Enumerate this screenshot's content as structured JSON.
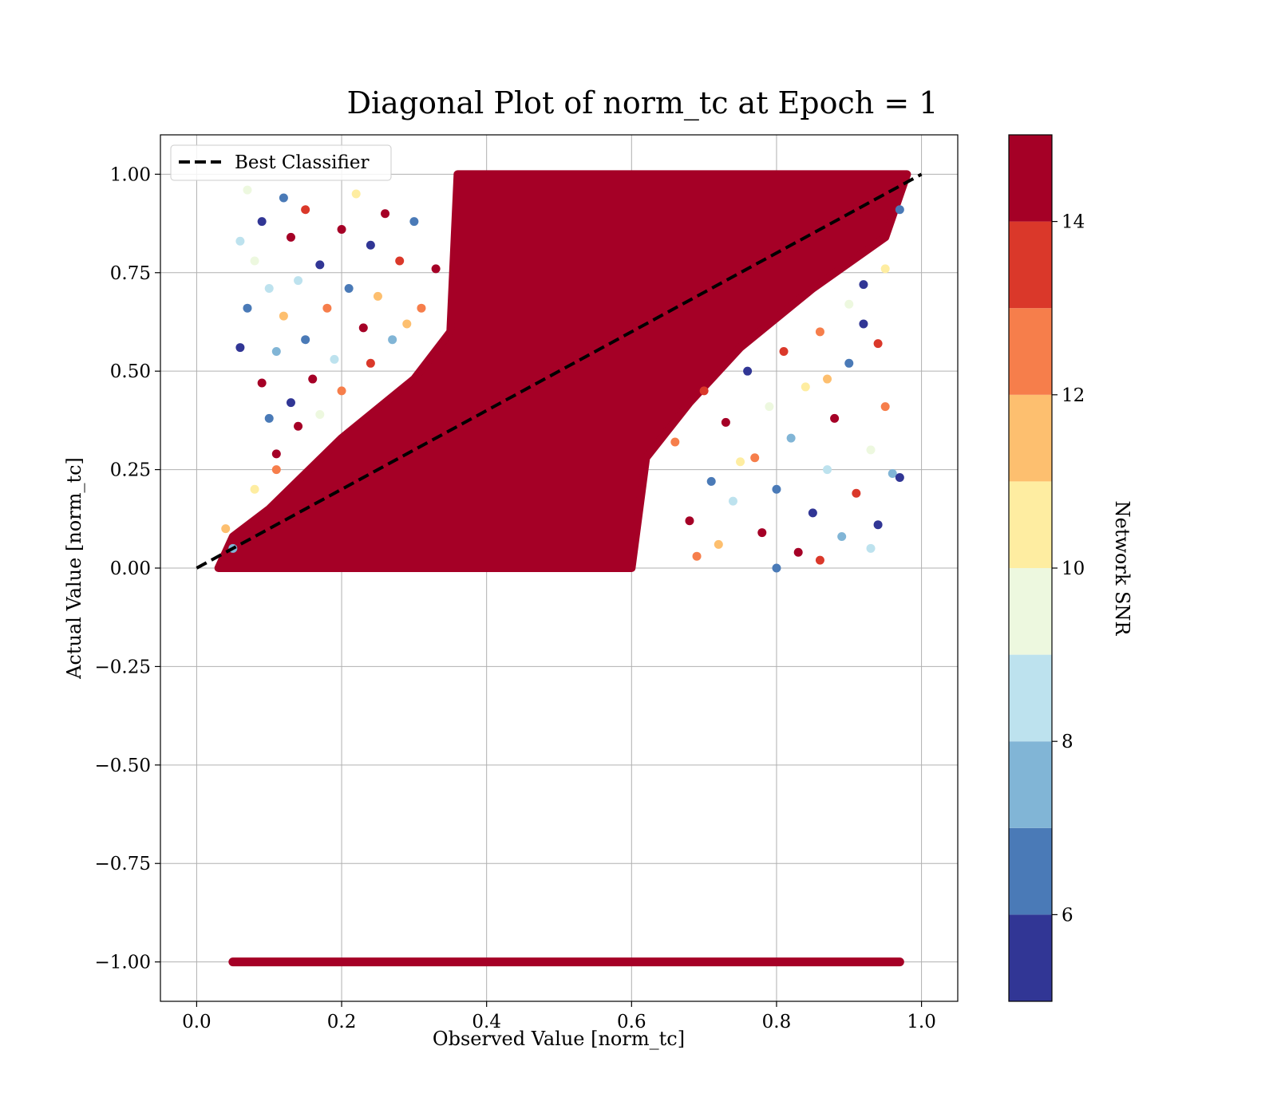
{
  "chart_data": {
    "type": "scatter",
    "title": "Diagonal Plot of norm_tc at Epoch = 1",
    "xlabel": "Observed Value [norm_tc]",
    "ylabel": "Actual Value [norm_tc]",
    "xlim": [
      -0.05,
      1.05
    ],
    "ylim": [
      -1.1,
      1.1
    ],
    "x_ticks": [
      {
        "value": 0.0,
        "label": "0.0"
      },
      {
        "value": 0.2,
        "label": "0.2"
      },
      {
        "value": 0.4,
        "label": "0.4"
      },
      {
        "value": 0.6,
        "label": "0.6"
      },
      {
        "value": 0.8,
        "label": "0.8"
      },
      {
        "value": 1.0,
        "label": "1.0"
      }
    ],
    "y_ticks": [
      {
        "value": 1.0,
        "label": "1.00"
      },
      {
        "value": 0.75,
        "label": "0.75"
      },
      {
        "value": 0.5,
        "label": "0.50"
      },
      {
        "value": 0.25,
        "label": "0.25"
      },
      {
        "value": 0.0,
        "label": "0.00"
      },
      {
        "value": -0.25,
        "label": "−0.25"
      },
      {
        "value": -0.5,
        "label": "−0.50"
      },
      {
        "value": -0.75,
        "label": "−0.75"
      },
      {
        "value": -1.0,
        "label": "−1.00"
      }
    ],
    "grid": true,
    "legend": {
      "position": "top-left",
      "entries": [
        {
          "label": "Best Classifier",
          "style": "dashed",
          "color": "#000000"
        }
      ]
    },
    "reference_line": {
      "x": [
        0,
        1
      ],
      "y": [
        0,
        1
      ]
    },
    "colorbar": {
      "label": "Network SNR",
      "range": [
        5,
        15
      ],
      "ticks": [
        {
          "value": 6,
          "label": "6"
        },
        {
          "value": 8,
          "label": "8"
        },
        {
          "value": 10,
          "label": "10"
        },
        {
          "value": 12,
          "label": "12"
        },
        {
          "value": 14,
          "label": "14"
        }
      ],
      "bins": [
        {
          "from": 5,
          "to": 6,
          "color": "#313695"
        },
        {
          "from": 6,
          "to": 7,
          "color": "#4a7ab7"
        },
        {
          "from": 7,
          "to": 8,
          "color": "#81b5d6"
        },
        {
          "from": 8,
          "to": 9,
          "color": "#bde2ee"
        },
        {
          "from": 9,
          "to": 10,
          "color": "#edf8df"
        },
        {
          "from": 10,
          "to": 11,
          "color": "#feeda1"
        },
        {
          "from": 11,
          "to": 12,
          "color": "#fdbf6f"
        },
        {
          "from": 12,
          "to": 13,
          "color": "#f67e4b"
        },
        {
          "from": 13,
          "to": 14,
          "color": "#da382a"
        },
        {
          "from": 14,
          "to": 15,
          "color": "#a50026"
        }
      ]
    },
    "dense_band": {
      "color": "#a50026",
      "polygon": [
        [
          0.03,
          0.0
        ],
        [
          0.05,
          0.08
        ],
        [
          0.1,
          0.15
        ],
        [
          0.2,
          0.33
        ],
        [
          0.3,
          0.48
        ],
        [
          0.35,
          0.6
        ],
        [
          0.36,
          1.0
        ],
        [
          0.98,
          1.0
        ],
        [
          0.95,
          0.84
        ],
        [
          0.85,
          0.71
        ],
        [
          0.75,
          0.56
        ],
        [
          0.68,
          0.42
        ],
        [
          0.62,
          0.28
        ],
        [
          0.6,
          0.0
        ]
      ]
    },
    "series": [
      {
        "name": "",
        "points": [
          {
            "x": 0.06,
            "y": 0.83,
            "snr": 8
          },
          {
            "x": 0.07,
            "y": 0.96,
            "snr": 9
          },
          {
            "x": 0.07,
            "y": 0.66,
            "snr": 6
          },
          {
            "x": 0.06,
            "y": 0.56,
            "snr": 5
          },
          {
            "x": 0.08,
            "y": 0.78,
            "snr": 9
          },
          {
            "x": 0.09,
            "y": 0.88,
            "snr": 5
          },
          {
            "x": 0.09,
            "y": 0.47,
            "snr": 14
          },
          {
            "x": 0.1,
            "y": 0.71,
            "snr": 8
          },
          {
            "x": 0.1,
            "y": 0.38,
            "snr": 6
          },
          {
            "x": 0.11,
            "y": 0.55,
            "snr": 7
          },
          {
            "x": 0.11,
            "y": 0.29,
            "snr": 14
          },
          {
            "x": 0.12,
            "y": 0.94,
            "snr": 6
          },
          {
            "x": 0.12,
            "y": 0.64,
            "snr": 11
          },
          {
            "x": 0.13,
            "y": 0.84,
            "snr": 14
          },
          {
            "x": 0.13,
            "y": 0.42,
            "snr": 5
          },
          {
            "x": 0.14,
            "y": 0.73,
            "snr": 8
          },
          {
            "x": 0.15,
            "y": 0.91,
            "snr": 13
          },
          {
            "x": 0.15,
            "y": 0.58,
            "snr": 6
          },
          {
            "x": 0.16,
            "y": 0.48,
            "snr": 14
          },
          {
            "x": 0.17,
            "y": 0.77,
            "snr": 5
          },
          {
            "x": 0.18,
            "y": 0.66,
            "snr": 12
          },
          {
            "x": 0.19,
            "y": 0.53,
            "snr": 8
          },
          {
            "x": 0.2,
            "y": 0.86,
            "snr": 14
          },
          {
            "x": 0.21,
            "y": 0.71,
            "snr": 6
          },
          {
            "x": 0.22,
            "y": 0.95,
            "snr": 10
          },
          {
            "x": 0.23,
            "y": 0.61,
            "snr": 14
          },
          {
            "x": 0.24,
            "y": 0.82,
            "snr": 5
          },
          {
            "x": 0.25,
            "y": 0.69,
            "snr": 11
          },
          {
            "x": 0.26,
            "y": 0.9,
            "snr": 14
          },
          {
            "x": 0.27,
            "y": 0.58,
            "snr": 7
          },
          {
            "x": 0.28,
            "y": 0.78,
            "snr": 13
          },
          {
            "x": 0.3,
            "y": 0.88,
            "snr": 6
          },
          {
            "x": 0.31,
            "y": 0.66,
            "snr": 12
          },
          {
            "x": 0.33,
            "y": 0.76,
            "snr": 14
          },
          {
            "x": 0.14,
            "y": 0.36,
            "snr": 14
          },
          {
            "x": 0.17,
            "y": 0.39,
            "snr": 9
          },
          {
            "x": 0.2,
            "y": 0.45,
            "snr": 12
          },
          {
            "x": 0.24,
            "y": 0.52,
            "snr": 13
          },
          {
            "x": 0.29,
            "y": 0.62,
            "snr": 11
          },
          {
            "x": 0.66,
            "y": 0.32,
            "snr": 12
          },
          {
            "x": 0.68,
            "y": 0.12,
            "snr": 14
          },
          {
            "x": 0.7,
            "y": 0.45,
            "snr": 13
          },
          {
            "x": 0.71,
            "y": 0.22,
            "snr": 6
          },
          {
            "x": 0.72,
            "y": 0.06,
            "snr": 11
          },
          {
            "x": 0.73,
            "y": 0.37,
            "snr": 14
          },
          {
            "x": 0.74,
            "y": 0.17,
            "snr": 8
          },
          {
            "x": 0.76,
            "y": 0.5,
            "snr": 5
          },
          {
            "x": 0.77,
            "y": 0.28,
            "snr": 12
          },
          {
            "x": 0.78,
            "y": 0.09,
            "snr": 14
          },
          {
            "x": 0.79,
            "y": 0.41,
            "snr": 9
          },
          {
            "x": 0.8,
            "y": 0.2,
            "snr": 6
          },
          {
            "x": 0.81,
            "y": 0.55,
            "snr": 13
          },
          {
            "x": 0.82,
            "y": 0.33,
            "snr": 7
          },
          {
            "x": 0.83,
            "y": 0.04,
            "snr": 14
          },
          {
            "x": 0.84,
            "y": 0.46,
            "snr": 10
          },
          {
            "x": 0.85,
            "y": 0.14,
            "snr": 5
          },
          {
            "x": 0.86,
            "y": 0.6,
            "snr": 12
          },
          {
            "x": 0.87,
            "y": 0.25,
            "snr": 8
          },
          {
            "x": 0.88,
            "y": 0.38,
            "snr": 14
          },
          {
            "x": 0.89,
            "y": 0.08,
            "snr": 7
          },
          {
            "x": 0.9,
            "y": 0.52,
            "snr": 6
          },
          {
            "x": 0.91,
            "y": 0.19,
            "snr": 13
          },
          {
            "x": 0.92,
            "y": 0.62,
            "snr": 5
          },
          {
            "x": 0.93,
            "y": 0.3,
            "snr": 9
          },
          {
            "x": 0.94,
            "y": 0.11,
            "snr": 5
          },
          {
            "x": 0.95,
            "y": 0.41,
            "snr": 12
          },
          {
            "x": 0.96,
            "y": 0.24,
            "snr": 7
          },
          {
            "x": 0.97,
            "y": 0.23,
            "snr": 5
          },
          {
            "x": 0.94,
            "y": 0.57,
            "snr": 13
          },
          {
            "x": 0.92,
            "y": 0.72,
            "snr": 5
          },
          {
            "x": 0.95,
            "y": 0.76,
            "snr": 10
          },
          {
            "x": 0.97,
            "y": 0.91,
            "snr": 6
          },
          {
            "x": 0.9,
            "y": 0.67,
            "snr": 9
          },
          {
            "x": 0.87,
            "y": 0.48,
            "snr": 11
          },
          {
            "x": 0.75,
            "y": 0.27,
            "snr": 10
          },
          {
            "x": 0.69,
            "y": 0.03,
            "snr": 12
          },
          {
            "x": 0.8,
            "y": 0.0,
            "snr": 6
          },
          {
            "x": 0.86,
            "y": 0.02,
            "snr": 13
          },
          {
            "x": 0.93,
            "y": 0.05,
            "snr": 8
          },
          {
            "x": 0.05,
            "y": 0.05,
            "snr": 7
          },
          {
            "x": 0.04,
            "y": 0.1,
            "snr": 11
          },
          {
            "x": 0.08,
            "y": 0.2,
            "snr": 10
          },
          {
            "x": 0.11,
            "y": 0.25,
            "snr": 12
          }
        ]
      }
    ],
    "constant_row": {
      "y": -1.0,
      "x_min": 0.05,
      "x_max": 0.97,
      "color": "#a50026"
    }
  }
}
